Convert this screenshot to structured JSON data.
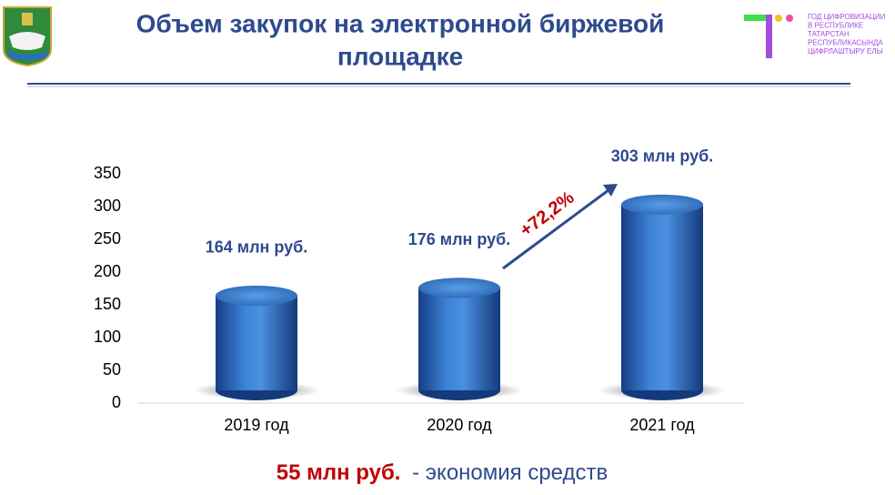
{
  "header": {
    "title_lines": [
      "Объем закупок на электронной биржевой",
      "площадке"
    ]
  },
  "logo": {
    "lines": [
      "ГОД ЦИФРОВИЗАЦИИ",
      "В РЕСПУБЛИКЕ",
      "ТАТАРСТАН",
      "РЕСПУБЛИКАСЫНДА",
      "ЦИФРЛАШТЫРУ ЕЛЫ"
    ]
  },
  "chart_data": {
    "type": "bar",
    "categories": [
      "2019 год",
      "2020 год",
      "2021 год"
    ],
    "values": [
      164,
      176,
      303
    ],
    "value_labels": [
      "164 млн руб.",
      "176 млн руб.",
      "303 млн руб."
    ],
    "color": "#2f6fc0",
    "ylim": [
      0,
      350
    ],
    "yticks": [
      0,
      50,
      100,
      150,
      200,
      250,
      300,
      350
    ],
    "annotation": "+72,2%"
  },
  "footer": {
    "amount": "55 млн руб.",
    "text": "- экономия средств"
  }
}
